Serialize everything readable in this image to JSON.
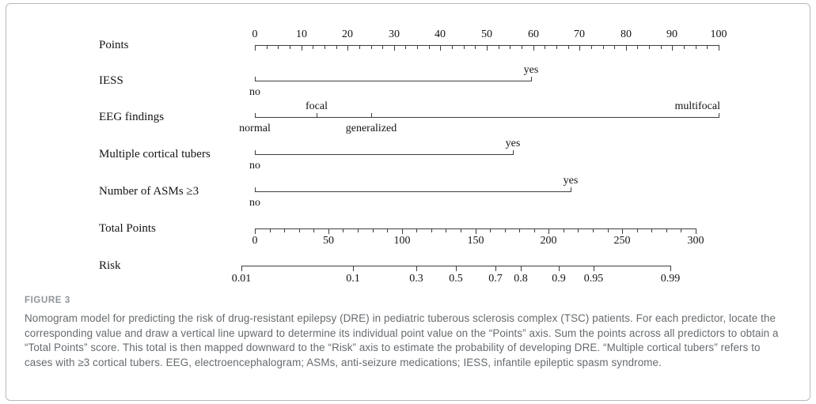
{
  "chart_data": {
    "type": "nomogram",
    "points_axis": {
      "label": "Points",
      "min": 0,
      "max": 100,
      "major_step": 10,
      "minor_step": 2.5
    },
    "predictors": [
      {
        "label": "IESS",
        "categories": [
          {
            "text": "no",
            "points": 0,
            "side": "below"
          },
          {
            "text": "yes",
            "points": 59.5,
            "side": "above"
          }
        ]
      },
      {
        "label": "EEG findings",
        "categories": [
          {
            "text": "normal",
            "points": 0,
            "side": "below"
          },
          {
            "text": "focal",
            "points": 13.3,
            "side": "above"
          },
          {
            "text": "generalized",
            "points": 25.1,
            "side": "below"
          },
          {
            "text": "multifocal",
            "points": 100,
            "side": "above",
            "align": "right"
          }
        ]
      },
      {
        "label": "Multiple cortical tubers",
        "categories": [
          {
            "text": "no",
            "points": 0,
            "side": "below"
          },
          {
            "text": "yes",
            "points": 55.6,
            "side": "above"
          }
        ]
      },
      {
        "label": "Number of ASMs ≥3",
        "categories": [
          {
            "text": "no",
            "points": 0,
            "side": "below"
          },
          {
            "text": "yes",
            "points": 68.1,
            "side": "above"
          }
        ]
      }
    ],
    "total_points_axis": {
      "label": "Total Points",
      "min": 0,
      "max": 300,
      "major_step": 50,
      "minor_step": 10
    },
    "risk_axis": {
      "label": "Risk",
      "scale": "logit",
      "ticks": [
        0.01,
        0.1,
        0.3,
        0.5,
        0.7,
        0.8,
        0.9,
        0.95,
        0.99
      ]
    }
  },
  "caption": {
    "label": "FIGURE 3",
    "text": "Nomogram model for predicting the risk of drug-resistant epilepsy (DRE) in pediatric tuberous sclerosis complex (TSC) patients. For each predictor, locate the corresponding value and draw a vertical line upward to determine its individual point value on the “Points” axis. Sum the points across all predictors to obtain a “Total Points” score. This total is then mapped downward to the “Risk” axis to estimate the probability of developing DRE. “Multiple cortical tubers” refers to cases with ≥3 cortical tubers. EEG, electroencephalogram; ASMs, anti-seizure medications; IESS, infantile epileptic spasm syndrome."
  },
  "colors": {
    "axis": "#3d3d3d",
    "text": "#141414",
    "caption_label": "#8f9498",
    "caption_text": "#666b6f",
    "card_border": "#b8babc",
    "background": "#ffffff"
  }
}
